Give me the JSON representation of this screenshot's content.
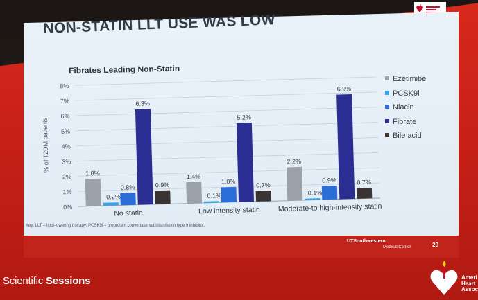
{
  "slide": {
    "title": "NON-STATIN LLT USE WAS LOW",
    "footnote": "Key: LLT – lipid-lowering therapy; PCSK9i – proprotein convertase subtilisin/kexin type 9 inhibitor.",
    "page_number": "20",
    "institution_name": "UTSouthwestern",
    "institution_sub": "Medical Center"
  },
  "event": {
    "name_prefix": "Scientific",
    "name_bold": "Sessions",
    "org_logo_text": "American\nHeart\nAssociation.",
    "org_logo_partial": "Ameri\nHeart\nAssoc"
  },
  "colors": {
    "Ezetimibe": "#9aa1a9",
    "PCSK9i": "#3aa3e6",
    "Niacin": "#2b6ed8",
    "Fibrate": "#2a2e93",
    "Bile acid": "#3b3434"
  },
  "chart_data": {
    "type": "bar",
    "title": "Fibrates Leading Non-Statin",
    "ylabel": "% of T2DM patients",
    "xlabel": "",
    "ylim": [
      0,
      8
    ],
    "yticks": [
      0,
      1,
      2,
      3,
      4,
      5,
      6,
      7,
      8
    ],
    "ytick_labels": [
      "0%",
      "1%",
      "2%",
      "3%",
      "4%",
      "5%",
      "6%",
      "7%",
      "8%"
    ],
    "gridlines": true,
    "legend_position": "right",
    "categories": [
      "No statin",
      "Low intensity statin",
      "Moderate-to high-intensity statin"
    ],
    "series": [
      {
        "name": "Ezetimibe",
        "values": [
          1.8,
          1.4,
          2.2
        ],
        "labels": [
          "1.8%",
          "1.4%",
          "2.2%"
        ]
      },
      {
        "name": "PCSK9i",
        "values": [
          0.2,
          0.1,
          0.1
        ],
        "labels": [
          "0.2%",
          "0.1%",
          "0.1%"
        ]
      },
      {
        "name": "Niacin",
        "values": [
          0.8,
          1.0,
          0.9
        ],
        "labels": [
          "0.8%",
          "1.0%",
          "0.9%"
        ]
      },
      {
        "name": "Fibrate",
        "values": [
          6.3,
          5.2,
          6.9
        ],
        "labels": [
          "6.3%",
          "5.2%",
          "6.9%"
        ]
      },
      {
        "name": "Bile acid",
        "values": [
          0.9,
          0.7,
          0.7
        ],
        "labels": [
          "0.9%",
          "0.7%",
          "0.7%"
        ]
      }
    ]
  }
}
